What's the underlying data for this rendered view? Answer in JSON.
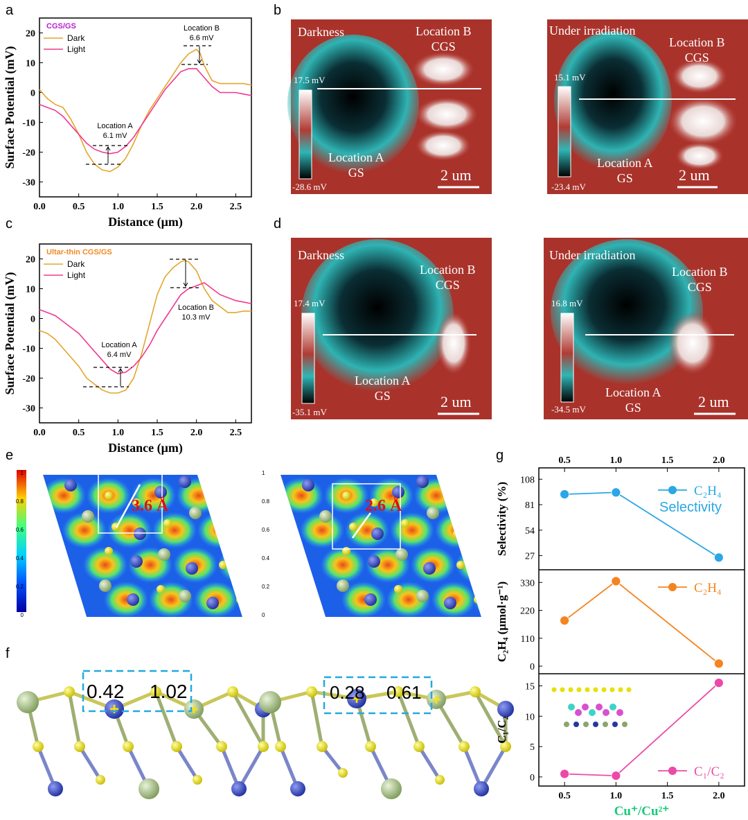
{
  "panels": {
    "a": "a",
    "b": "b",
    "c": "c",
    "d": "d",
    "e": "e",
    "f": "f",
    "g": "g"
  },
  "panel_a": {
    "legend_title": "CGS/GS",
    "legend": [
      "Dark",
      "Light"
    ],
    "annotations": {
      "locA": "Location A",
      "locA_val": "6.1 mV",
      "locB": "Location B",
      "locB_val": "6.6 mV"
    },
    "xlabel": "Distance (μm)",
    "ylabel": "Surface Potential (mV)",
    "xticks": [
      "0.0",
      "0.5",
      "1.0",
      "1.5",
      "2.0",
      "2.5"
    ],
    "yticks": [
      "20",
      "10",
      "0",
      "-10",
      "-20",
      "-30"
    ],
    "colors": {
      "dark": "#e3a62b",
      "light": "#f0388f",
      "title": "#b51fd0"
    }
  },
  "panel_c": {
    "legend_title": "Ultar-thin CGS/GS",
    "legend": [
      "Dark",
      "Light"
    ],
    "annotations": {
      "locA": "Location A",
      "locA_val": "6.4 mV",
      "locB": "Location B",
      "locB_val": "10.3 mV"
    },
    "xlabel": "Distance (μm)",
    "ylabel": "Surface Potential (mV)",
    "xticks": [
      "0.0",
      "0.5",
      "1.0",
      "1.5",
      "2.0",
      "2.5"
    ],
    "yticks": [
      "20",
      "10",
      "0",
      "-10",
      "-20",
      "-30"
    ],
    "colors": {
      "title": "#f08a24"
    }
  },
  "panel_b": {
    "left": {
      "title": "Darkness",
      "max": "17.5 mV",
      "min": "-28.6 mV",
      "locA": "Location A",
      "subA": "GS",
      "locB": "Location B",
      "subB": "CGS",
      "scale": "2 um"
    },
    "right": {
      "title": "Under irradiation",
      "max": "15.1 mV",
      "min": "-23.4 mV",
      "locA": "Location A",
      "subA": "GS",
      "locB": "Location B",
      "subB": "CGS",
      "scale": "2 um"
    }
  },
  "panel_d": {
    "left": {
      "title": "Darkness",
      "max": "17.4 mV",
      "min": "-35.1 mV",
      "locA": "Location A",
      "subA": "GS",
      "locB": "Location B",
      "subB": "CGS",
      "scale": "2 um"
    },
    "right": {
      "title": "Under irradiation",
      "max": "16.8 mV",
      "min": "-34.5 mV",
      "locA": "Location A",
      "subA": "GS",
      "locB": "Location B",
      "subB": "CGS",
      "scale": "2 um"
    }
  },
  "panel_e": {
    "colorbar_ticks": [
      "1",
      "0.8",
      "0.6",
      "0.4",
      "0.2",
      "0"
    ],
    "left_distance": "3.6 Å",
    "right_distance": "2.6 Å"
  },
  "panel_f": {
    "left_values": [
      "0.42",
      "1.02"
    ],
    "right_values": [
      "0.28",
      "0.61"
    ]
  },
  "panel_g": {
    "top_xticks": [
      "0.5",
      "1.0",
      "1.5",
      "2.0"
    ],
    "bottom_xticks": [
      "0.5",
      "1.0",
      "1.5",
      "2.0"
    ],
    "xlabel": "Cu⁺/Cu²⁺",
    "sub1": {
      "ylabel": "Selectivity (%)",
      "yticks": [
        "108",
        "81",
        "54",
        "27"
      ],
      "legend": "C₂H₄",
      "legend2": "Selectivity",
      "color": "#2aa7e6"
    },
    "sub2": {
      "ylabel": "C₂H₄ (μmol·g⁻¹)",
      "yticks": [
        "330",
        "220",
        "110",
        "0"
      ],
      "legend": "C₂H₄",
      "color": "#f5841f"
    },
    "sub3": {
      "ylabel": "C₁/C₂",
      "yticks": [
        "15",
        "10",
        "5",
        "0"
      ],
      "legend": "C₁/C₂",
      "color": "#ec4aa8"
    }
  },
  "chart_data": [
    {
      "type": "line",
      "title": "CGS/GS",
      "xlabel": "Distance (μm)",
      "ylabel": "Surface Potential (mV)",
      "xlim": [
        0,
        2.7
      ],
      "ylim": [
        -35,
        25
      ],
      "series": [
        {
          "name": "Dark",
          "x": [
            0,
            0.1,
            0.2,
            0.3,
            0.4,
            0.5,
            0.6,
            0.7,
            0.8,
            0.9,
            1.0,
            1.1,
            1.2,
            1.3,
            1.4,
            1.5,
            1.6,
            1.7,
            1.8,
            1.9,
            2.0,
            2.05,
            2.1,
            2.2,
            2.3,
            2.4,
            2.5,
            2.6,
            2.7
          ],
          "y": [
            1,
            -2,
            -4,
            -5,
            -9,
            -14,
            -20,
            -24,
            -26,
            -26.5,
            -25,
            -22,
            -17,
            -11,
            -6,
            -2,
            2,
            6,
            10,
            13,
            14.5,
            13,
            9,
            4,
            3,
            3,
            3,
            3,
            2.5
          ]
        },
        {
          "name": "Light",
          "x": [
            0,
            0.1,
            0.2,
            0.3,
            0.4,
            0.5,
            0.6,
            0.7,
            0.8,
            0.9,
            1.0,
            1.1,
            1.2,
            1.3,
            1.4,
            1.5,
            1.6,
            1.7,
            1.8,
            1.9,
            2.0,
            2.1,
            2.2,
            2.3,
            2.4,
            2.5,
            2.6,
            2.7
          ],
          "y": [
            -4,
            -5,
            -6,
            -8,
            -11,
            -14,
            -17,
            -19,
            -20,
            -20.5,
            -20,
            -18,
            -15,
            -11,
            -7,
            -3,
            1,
            4,
            7,
            8,
            8,
            5,
            2,
            0,
            0,
            0,
            -0.5,
            -1
          ]
        }
      ]
    },
    {
      "type": "line",
      "title": "Ultar-thin CGS/GS",
      "xlabel": "Distance (μm)",
      "ylabel": "Surface Potential (mV)",
      "xlim": [
        0,
        2.7
      ],
      "ylim": [
        -35,
        25
      ],
      "series": [
        {
          "name": "Dark",
          "x": [
            0,
            0.1,
            0.2,
            0.3,
            0.4,
            0.5,
            0.6,
            0.7,
            0.8,
            0.9,
            1.0,
            1.1,
            1.2,
            1.3,
            1.4,
            1.5,
            1.6,
            1.7,
            1.8,
            1.85,
            1.9,
            2.0,
            2.1,
            2.2,
            2.3,
            2.4,
            2.5,
            2.6,
            2.7
          ],
          "y": [
            -4,
            -5,
            -7,
            -10,
            -13,
            -16,
            -20,
            -22,
            -24,
            -25,
            -25,
            -24,
            -20,
            -12,
            -2,
            8,
            14,
            17,
            19,
            19.5,
            19,
            16,
            10,
            6,
            4,
            2,
            2,
            2.5,
            2.5
          ]
        },
        {
          "name": "Light",
          "x": [
            0,
            0.1,
            0.2,
            0.3,
            0.4,
            0.5,
            0.6,
            0.7,
            0.8,
            0.9,
            1.0,
            1.1,
            1.2,
            1.3,
            1.4,
            1.5,
            1.6,
            1.7,
            1.8,
            1.9,
            2.0,
            2.1,
            2.2,
            2.3,
            2.4,
            2.5,
            2.6,
            2.7
          ],
          "y": [
            3,
            2,
            1,
            -1,
            -3,
            -5,
            -8,
            -11,
            -14,
            -17,
            -18.5,
            -18,
            -16,
            -13,
            -9,
            -4,
            0,
            4,
            8,
            10,
            11,
            12,
            10,
            8,
            7,
            6,
            5.5,
            5
          ]
        }
      ]
    },
    {
      "type": "line",
      "title": "",
      "xlabel": "Cu⁺/Cu²⁺",
      "series": [
        {
          "name": "C₂H₄ Selectivity",
          "x": [
            0.5,
            1.0,
            2.0
          ],
          "y": [
            92,
            94,
            25
          ]
        },
        {
          "name": "C₂H₄",
          "x": [
            0.5,
            1.0,
            2.0
          ],
          "y": [
            180,
            335,
            10
          ]
        },
        {
          "name": "C₁/C₂",
          "x": [
            0.5,
            1.0,
            2.0
          ],
          "y": [
            0.5,
            0.2,
            15.5
          ]
        }
      ]
    }
  ]
}
